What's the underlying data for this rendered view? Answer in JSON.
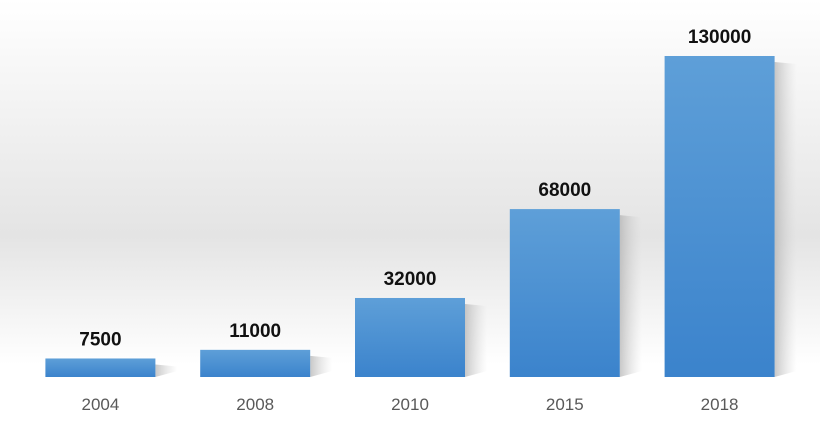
{
  "chart_data": {
    "type": "bar",
    "categories": [
      "2004",
      "2008",
      "2010",
      "2015",
      "2018"
    ],
    "values": [
      7500,
      11000,
      32000,
      68000,
      130000
    ],
    "color": "#4a8fd3"
  }
}
